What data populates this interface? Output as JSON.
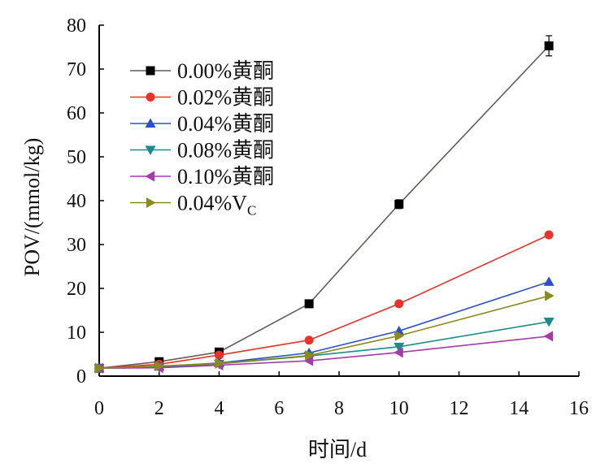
{
  "chart_data": {
    "type": "line",
    "xlabel": "时间/d",
    "ylabel": "POV/(mmol/kg)",
    "xlim": [
      0,
      16
    ],
    "ylim": [
      0,
      80
    ],
    "xticks": [
      0,
      2,
      4,
      6,
      8,
      10,
      12,
      14,
      16
    ],
    "yticks": [
      0,
      10,
      20,
      30,
      40,
      50,
      60,
      70,
      80
    ],
    "x": [
      0,
      2,
      4,
      7,
      10,
      15
    ],
    "legend_position": "upper-left",
    "grid": false,
    "series": [
      {
        "name": "0.00%黄酮",
        "color": "#000000",
        "line_color": "#6b5a5a",
        "marker": "square",
        "values": [
          1.8,
          3.3,
          5.5,
          16.5,
          39.2,
          75.3
        ],
        "error": [
          0.3,
          0.3,
          0.4,
          0.5,
          1.0,
          2.3
        ]
      },
      {
        "name": "0.02%黄酮",
        "color": "#e8322a",
        "line_color": "#e8322a",
        "marker": "circle",
        "values": [
          1.8,
          2.7,
          4.8,
          8.2,
          16.5,
          32.2
        ],
        "error": [
          0,
          0,
          0,
          0,
          0,
          0
        ]
      },
      {
        "name": "0.04%黄酮",
        "color": "#2d4fc8",
        "line_color": "#2d4fc8",
        "marker": "triangle-up",
        "values": [
          1.8,
          2.2,
          3.0,
          5.3,
          10.3,
          21.5
        ],
        "error": [
          0,
          0,
          0,
          0,
          0,
          0
        ]
      },
      {
        "name": "0.08%黄酮",
        "color": "#1f8a8a",
        "line_color": "#1f8a8a",
        "marker": "triangle-down",
        "values": [
          1.8,
          2.0,
          2.8,
          4.6,
          6.7,
          12.4
        ],
        "error": [
          0,
          0,
          0,
          0,
          0,
          0
        ]
      },
      {
        "name": "0.10%黄酮",
        "color": "#a53aa8",
        "line_color": "#a53aa8",
        "marker": "triangle-left",
        "values": [
          1.8,
          1.9,
          2.5,
          3.5,
          5.4,
          9.1
        ],
        "error": [
          0,
          0,
          0,
          0,
          0,
          0
        ]
      },
      {
        "name": "0.04%V",
        "name_subscript": "C",
        "color": "#8a8a1f",
        "line_color": "#8a8a1f",
        "marker": "triangle-right",
        "values": [
          1.8,
          2.3,
          2.9,
          4.7,
          9.2,
          18.3
        ],
        "error": [
          0,
          0,
          0,
          0,
          0,
          0
        ]
      }
    ]
  }
}
